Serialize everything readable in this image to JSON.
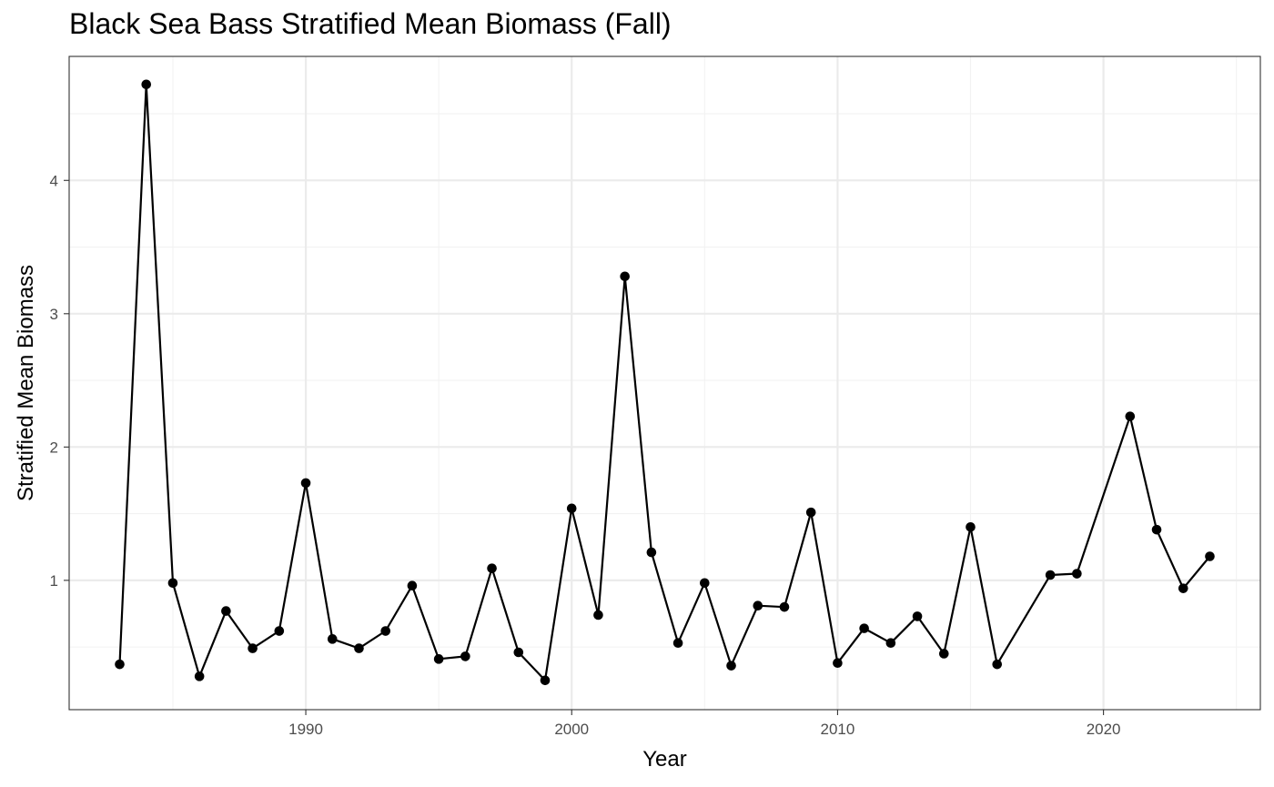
{
  "chart_data": {
    "type": "line",
    "title": "Black Sea Bass Stratified Mean Biomass (Fall)",
    "xlabel": "Year",
    "ylabel": "Stratified Mean Biomass",
    "xlim": [
      1981.1,
      2025.9
    ],
    "ylim": [
      0.03,
      4.93
    ],
    "x_ticks": [
      1990,
      2000,
      2010,
      2020
    ],
    "y_ticks": [
      1,
      2,
      3,
      4
    ],
    "grid": true,
    "legend": "none",
    "series": [
      {
        "x": [
          1983,
          1984,
          1985,
          1986,
          1987,
          1988,
          1989,
          1990,
          1991,
          1992,
          1993,
          1994,
          1995,
          1996,
          1997,
          1998,
          1999,
          2000,
          2001,
          2002,
          2003,
          2004,
          2005,
          2006,
          2007,
          2008,
          2009,
          2010,
          2011,
          2012,
          2013,
          2014,
          2015,
          2016,
          2018,
          2019,
          2021,
          2022,
          2023,
          2024
        ],
        "values": [
          0.37,
          4.72,
          0.98,
          0.28,
          0.77,
          0.49,
          0.62,
          1.73,
          0.56,
          0.49,
          0.62,
          0.96,
          0.41,
          0.43,
          1.09,
          0.46,
          0.25,
          1.54,
          0.74,
          3.28,
          1.21,
          0.53,
          0.98,
          0.36,
          0.81,
          0.8,
          1.51,
          0.38,
          0.64,
          0.53,
          0.73,
          0.45,
          1.4,
          0.37,
          1.04,
          1.05,
          2.23,
          1.38,
          0.94,
          1.18
        ]
      }
    ]
  },
  "colors": {
    "line": "#000000",
    "points": "#000000",
    "grid_major": "#ebebeb",
    "grid_minor": "#f2f2f2",
    "panel_border": "#333333",
    "tick_text": "#4d4d4d"
  }
}
